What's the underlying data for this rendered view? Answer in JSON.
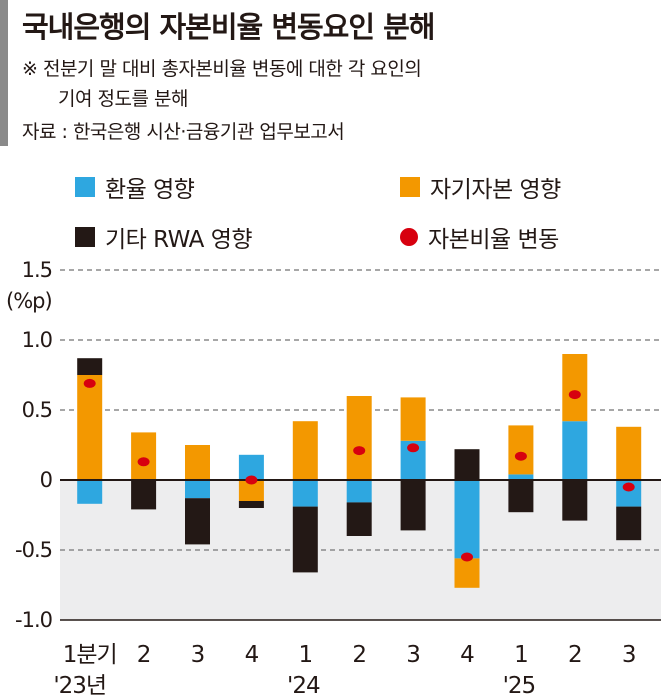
{
  "chart_data": {
    "type": "bar",
    "stacked": true,
    "title": "국내은행의 자본비율 변동요인 분해",
    "notes": [
      "※ 전분기 말 대비 총자본비율 변동에 대한 각 요인의",
      "기여 정도를 분해",
      "자료 : 한국은행 시산·금융기관 업무보고서"
    ],
    "ylabel": "(%p)",
    "ylim": [
      -1.0,
      1.5
    ],
    "yticks": [
      "1.5",
      "1.0",
      "0.5",
      "0",
      "-0.5",
      "-1.0"
    ],
    "ytick_values": [
      1.5,
      1.0,
      0.5,
      0,
      -0.5,
      -1.0
    ],
    "grid": true,
    "categories": [
      "1분기",
      "2",
      "3",
      "4",
      "1",
      "2",
      "3",
      "4",
      "1",
      "2",
      "3"
    ],
    "year_labels": [
      {
        "index": 0,
        "label": "'23년"
      },
      {
        "index": 4,
        "label": "'24"
      },
      {
        "index": 8,
        "label": "'25"
      }
    ],
    "colors": {
      "fx": "#2ea7e0",
      "equity": "#f39800",
      "rwa": "#231815",
      "total": "#d7000f"
    },
    "legend": [
      "환율 영향",
      "자기자본 영향",
      "기타 RWA 영향",
      "자본비율 변동"
    ],
    "series": [
      {
        "name": "환율 영향",
        "key": "fx",
        "values": [
          -0.17,
          0,
          -0.13,
          0.18,
          -0.19,
          -0.16,
          0.28,
          -0.56,
          0.04,
          0.42,
          -0.19
        ]
      },
      {
        "name": "자기자본 영향",
        "key": "equity",
        "values": [
          0.75,
          0.34,
          0.25,
          -0.15,
          0.42,
          0.6,
          0.31,
          -0.21,
          0.35,
          0.48,
          0.38
        ]
      },
      {
        "name": "기타 RWA 영향",
        "key": "rwa",
        "values": [
          0.12,
          -0.21,
          -0.33,
          -0.05,
          -0.47,
          -0.24,
          -0.36,
          0.22,
          -0.23,
          -0.29,
          -0.24
        ]
      },
      {
        "name": "자본비율 변동",
        "key": "total",
        "type": "dot",
        "values": [
          0.69,
          0.13,
          null,
          0.0,
          null,
          0.21,
          0.23,
          -0.55,
          0.17,
          0.61,
          -0.05
        ]
      }
    ]
  }
}
